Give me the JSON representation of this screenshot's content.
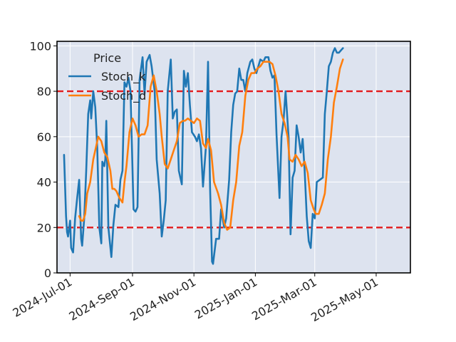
{
  "chart_data": {
    "type": "line",
    "title": "",
    "xlabel": "",
    "ylabel": "",
    "ylim": [
      0,
      102
    ],
    "xlim": [
      "2024-06-18",
      "2025-06-04"
    ],
    "grid": true,
    "background": "#dde3ef",
    "legend": {
      "title": "Price",
      "placement": "upper-left",
      "entries": [
        "Stoch_k",
        "Stoch_d"
      ]
    },
    "x_ticks": [
      {
        "date": "2024-07-01",
        "label": "2024-Jul-01"
      },
      {
        "date": "2024-09-01",
        "label": "2024-Sep-01"
      },
      {
        "date": "2024-11-01",
        "label": "2024-Nov-01"
      },
      {
        "date": "2025-01-01",
        "label": "2025-Jan-01"
      },
      {
        "date": "2025-03-01",
        "label": "2025-Mar-01"
      },
      {
        "date": "2025-05-01",
        "label": "2025-May-01"
      }
    ],
    "y_ticks": [
      0,
      20,
      40,
      60,
      80,
      100
    ],
    "reference_lines": [
      {
        "y": 80,
        "color": "#e31a1c",
        "style": "dashed"
      },
      {
        "y": 20,
        "color": "#e31a1c",
        "style": "dashed"
      }
    ],
    "series": [
      {
        "name": "Stoch_k",
        "color": "#1f77b4",
        "points": [
          [
            "2024-06-25",
            52
          ],
          [
            "2024-06-27",
            25
          ],
          [
            "2024-06-28",
            18
          ],
          [
            "2024-06-29",
            16
          ],
          [
            "2024-07-01",
            23
          ],
          [
            "2024-07-02",
            11
          ],
          [
            "2024-07-04",
            9
          ],
          [
            "2024-07-06",
            24
          ],
          [
            "2024-07-08",
            33
          ],
          [
            "2024-07-10",
            41
          ],
          [
            "2024-07-12",
            15
          ],
          [
            "2024-07-13",
            12
          ],
          [
            "2024-07-15",
            24
          ],
          [
            "2024-07-17",
            45
          ],
          [
            "2024-07-19",
            70
          ],
          [
            "2024-07-21",
            76
          ],
          [
            "2024-07-22",
            68
          ],
          [
            "2024-07-24",
            80
          ],
          [
            "2024-07-26",
            73
          ],
          [
            "2024-07-28",
            55
          ],
          [
            "2024-07-30",
            20
          ],
          [
            "2024-08-01",
            13
          ],
          [
            "2024-08-02",
            49
          ],
          [
            "2024-08-04",
            47
          ],
          [
            "2024-08-05",
            50
          ],
          [
            "2024-08-06",
            67
          ],
          [
            "2024-08-08",
            20
          ],
          [
            "2024-08-11",
            7
          ],
          [
            "2024-08-13",
            21
          ],
          [
            "2024-08-15",
            30
          ],
          [
            "2024-08-18",
            29
          ],
          [
            "2024-08-20",
            41
          ],
          [
            "2024-08-22",
            45
          ],
          [
            "2024-08-24",
            84
          ],
          [
            "2024-08-26",
            82
          ],
          [
            "2024-08-28",
            86
          ],
          [
            "2024-08-30",
            80
          ],
          [
            "2024-09-02",
            28
          ],
          [
            "2024-09-04",
            27
          ],
          [
            "2024-09-06",
            29
          ],
          [
            "2024-09-08",
            85
          ],
          [
            "2024-09-11",
            95
          ],
          [
            "2024-09-13",
            79
          ],
          [
            "2024-09-15",
            93
          ],
          [
            "2024-09-18",
            96
          ],
          [
            "2024-09-20",
            91
          ],
          [
            "2024-09-23",
            80
          ],
          [
            "2024-09-25",
            50
          ],
          [
            "2024-09-28",
            35
          ],
          [
            "2024-09-30",
            16
          ],
          [
            "2024-10-02",
            23
          ],
          [
            "2024-10-04",
            32
          ],
          [
            "2024-10-06",
            80
          ],
          [
            "2024-10-09",
            94
          ],
          [
            "2024-10-11",
            68
          ],
          [
            "2024-10-13",
            71
          ],
          [
            "2024-10-15",
            72
          ],
          [
            "2024-10-17",
            45
          ],
          [
            "2024-10-20",
            39
          ],
          [
            "2024-10-22",
            89
          ],
          [
            "2024-10-24",
            82
          ],
          [
            "2024-10-26",
            88
          ],
          [
            "2024-10-28",
            74
          ],
          [
            "2024-10-30",
            62
          ],
          [
            "2024-11-02",
            60
          ],
          [
            "2024-11-04",
            58
          ],
          [
            "2024-11-06",
            61
          ],
          [
            "2024-11-08",
            55
          ],
          [
            "2024-11-10",
            38
          ],
          [
            "2024-11-13",
            56
          ],
          [
            "2024-11-15",
            93
          ],
          [
            "2024-11-17",
            38
          ],
          [
            "2024-11-19",
            5
          ],
          [
            "2024-11-20",
            4
          ],
          [
            "2024-11-23",
            15
          ],
          [
            "2024-11-26",
            15
          ],
          [
            "2024-11-28",
            28
          ],
          [
            "2024-12-01",
            20
          ],
          [
            "2024-12-03",
            24
          ],
          [
            "2024-12-06",
            41
          ],
          [
            "2024-12-08",
            62
          ],
          [
            "2024-12-10",
            74
          ],
          [
            "2024-12-12",
            79
          ],
          [
            "2024-12-14",
            80
          ],
          [
            "2024-12-16",
            90
          ],
          [
            "2024-12-18",
            85
          ],
          [
            "2024-12-20",
            85
          ],
          [
            "2024-12-22",
            80
          ],
          [
            "2024-12-24",
            88
          ],
          [
            "2024-12-27",
            93
          ],
          [
            "2024-12-29",
            94
          ],
          [
            "2024-12-31",
            90
          ],
          [
            "2025-01-02",
            88
          ],
          [
            "2025-01-04",
            91
          ],
          [
            "2025-01-06",
            94
          ],
          [
            "2025-01-09",
            93
          ],
          [
            "2025-01-11",
            95
          ],
          [
            "2025-01-14",
            95
          ],
          [
            "2025-01-16",
            89
          ],
          [
            "2025-01-18",
            86
          ],
          [
            "2025-01-20",
            87
          ],
          [
            "2025-01-22",
            61
          ],
          [
            "2025-01-25",
            33
          ],
          [
            "2025-01-27",
            60
          ],
          [
            "2025-01-29",
            67
          ],
          [
            "2025-01-31",
            80
          ],
          [
            "2025-02-03",
            60
          ],
          [
            "2025-02-05",
            17
          ],
          [
            "2025-02-07",
            42
          ],
          [
            "2025-02-09",
            45
          ],
          [
            "2025-02-11",
            65
          ],
          [
            "2025-02-13",
            60
          ],
          [
            "2025-02-15",
            53
          ],
          [
            "2025-02-17",
            59
          ],
          [
            "2025-02-19",
            45
          ],
          [
            "2025-02-21",
            25
          ],
          [
            "2025-02-23",
            14
          ],
          [
            "2025-02-25",
            11
          ],
          [
            "2025-02-27",
            26
          ],
          [
            "2025-03-01",
            24
          ],
          [
            "2025-03-03",
            40
          ],
          [
            "2025-03-06",
            41
          ],
          [
            "2025-03-09",
            42
          ],
          [
            "2025-03-11",
            70
          ],
          [
            "2025-03-13",
            80
          ],
          [
            "2025-03-15",
            91
          ],
          [
            "2025-03-17",
            93
          ],
          [
            "2025-03-19",
            97
          ],
          [
            "2025-03-21",
            99
          ],
          [
            "2025-03-23",
            97
          ],
          [
            "2025-03-25",
            97
          ],
          [
            "2025-03-27",
            98
          ],
          [
            "2025-03-29",
            99
          ]
        ]
      },
      {
        "name": "Stoch_d",
        "color": "#ff7f0e",
        "points": [
          [
            "2024-07-10",
            25
          ],
          [
            "2024-07-12",
            23
          ],
          [
            "2024-07-14",
            23
          ],
          [
            "2024-07-16",
            26
          ],
          [
            "2024-07-18",
            35
          ],
          [
            "2024-07-21",
            40
          ],
          [
            "2024-07-24",
            50
          ],
          [
            "2024-07-27",
            56
          ],
          [
            "2024-07-29",
            60
          ],
          [
            "2024-08-01",
            58
          ],
          [
            "2024-08-04",
            53
          ],
          [
            "2024-08-07",
            51
          ],
          [
            "2024-08-10",
            45
          ],
          [
            "2024-08-12",
            37
          ],
          [
            "2024-08-14",
            37
          ],
          [
            "2024-08-16",
            36
          ],
          [
            "2024-08-19",
            33
          ],
          [
            "2024-08-22",
            31
          ],
          [
            "2024-08-24",
            40
          ],
          [
            "2024-08-26",
            47
          ],
          [
            "2024-08-29",
            62
          ],
          [
            "2024-09-01",
            68
          ],
          [
            "2024-09-04",
            65
          ],
          [
            "2024-09-07",
            60
          ],
          [
            "2024-09-10",
            61
          ],
          [
            "2024-09-13",
            61
          ],
          [
            "2024-09-16",
            65
          ],
          [
            "2024-09-19",
            82
          ],
          [
            "2024-09-22",
            87
          ],
          [
            "2024-09-25",
            80
          ],
          [
            "2024-09-28",
            70
          ],
          [
            "2024-09-30",
            60
          ],
          [
            "2024-10-03",
            48
          ],
          [
            "2024-10-06",
            46
          ],
          [
            "2024-10-09",
            50
          ],
          [
            "2024-10-12",
            54
          ],
          [
            "2024-10-15",
            58
          ],
          [
            "2024-10-18",
            66
          ],
          [
            "2024-10-21",
            67
          ],
          [
            "2024-10-23",
            67
          ],
          [
            "2024-10-26",
            68
          ],
          [
            "2024-10-29",
            67
          ],
          [
            "2024-11-01",
            66
          ],
          [
            "2024-11-04",
            68
          ],
          [
            "2024-11-07",
            67
          ],
          [
            "2024-11-10",
            57
          ],
          [
            "2024-11-13",
            55
          ],
          [
            "2024-11-15",
            59
          ],
          [
            "2024-11-18",
            54
          ],
          [
            "2024-11-21",
            40
          ],
          [
            "2024-11-25",
            35
          ],
          [
            "2024-11-28",
            30
          ],
          [
            "2024-12-01",
            22
          ],
          [
            "2024-12-04",
            19
          ],
          [
            "2024-12-07",
            20
          ],
          [
            "2024-12-10",
            32
          ],
          [
            "2024-12-13",
            40
          ],
          [
            "2024-12-16",
            56
          ],
          [
            "2024-12-19",
            62
          ],
          [
            "2024-12-22",
            78
          ],
          [
            "2024-12-25",
            85
          ],
          [
            "2024-12-28",
            88
          ],
          [
            "2024-12-31",
            88
          ],
          [
            "2025-01-03",
            90
          ],
          [
            "2025-01-06",
            91
          ],
          [
            "2025-01-09",
            93
          ],
          [
            "2025-01-12",
            93
          ],
          [
            "2025-01-15",
            93
          ],
          [
            "2025-01-18",
            92
          ],
          [
            "2025-01-21",
            87
          ],
          [
            "2025-01-24",
            80
          ],
          [
            "2025-01-27",
            70
          ],
          [
            "2025-01-30",
            66
          ],
          [
            "2025-02-02",
            60
          ],
          [
            "2025-02-04",
            50
          ],
          [
            "2025-02-07",
            49
          ],
          [
            "2025-02-10",
            52
          ],
          [
            "2025-02-13",
            50
          ],
          [
            "2025-02-16",
            47
          ],
          [
            "2025-02-19",
            49
          ],
          [
            "2025-02-22",
            44
          ],
          [
            "2025-02-25",
            32
          ],
          [
            "2025-02-28",
            28
          ],
          [
            "2025-03-02",
            26
          ],
          [
            "2025-03-05",
            26
          ],
          [
            "2025-03-08",
            30
          ],
          [
            "2025-03-11",
            35
          ],
          [
            "2025-03-14",
            50
          ],
          [
            "2025-03-17",
            60
          ],
          [
            "2025-03-20",
            75
          ],
          [
            "2025-03-23",
            82
          ],
          [
            "2025-03-26",
            90
          ],
          [
            "2025-03-29",
            94
          ]
        ]
      }
    ]
  }
}
